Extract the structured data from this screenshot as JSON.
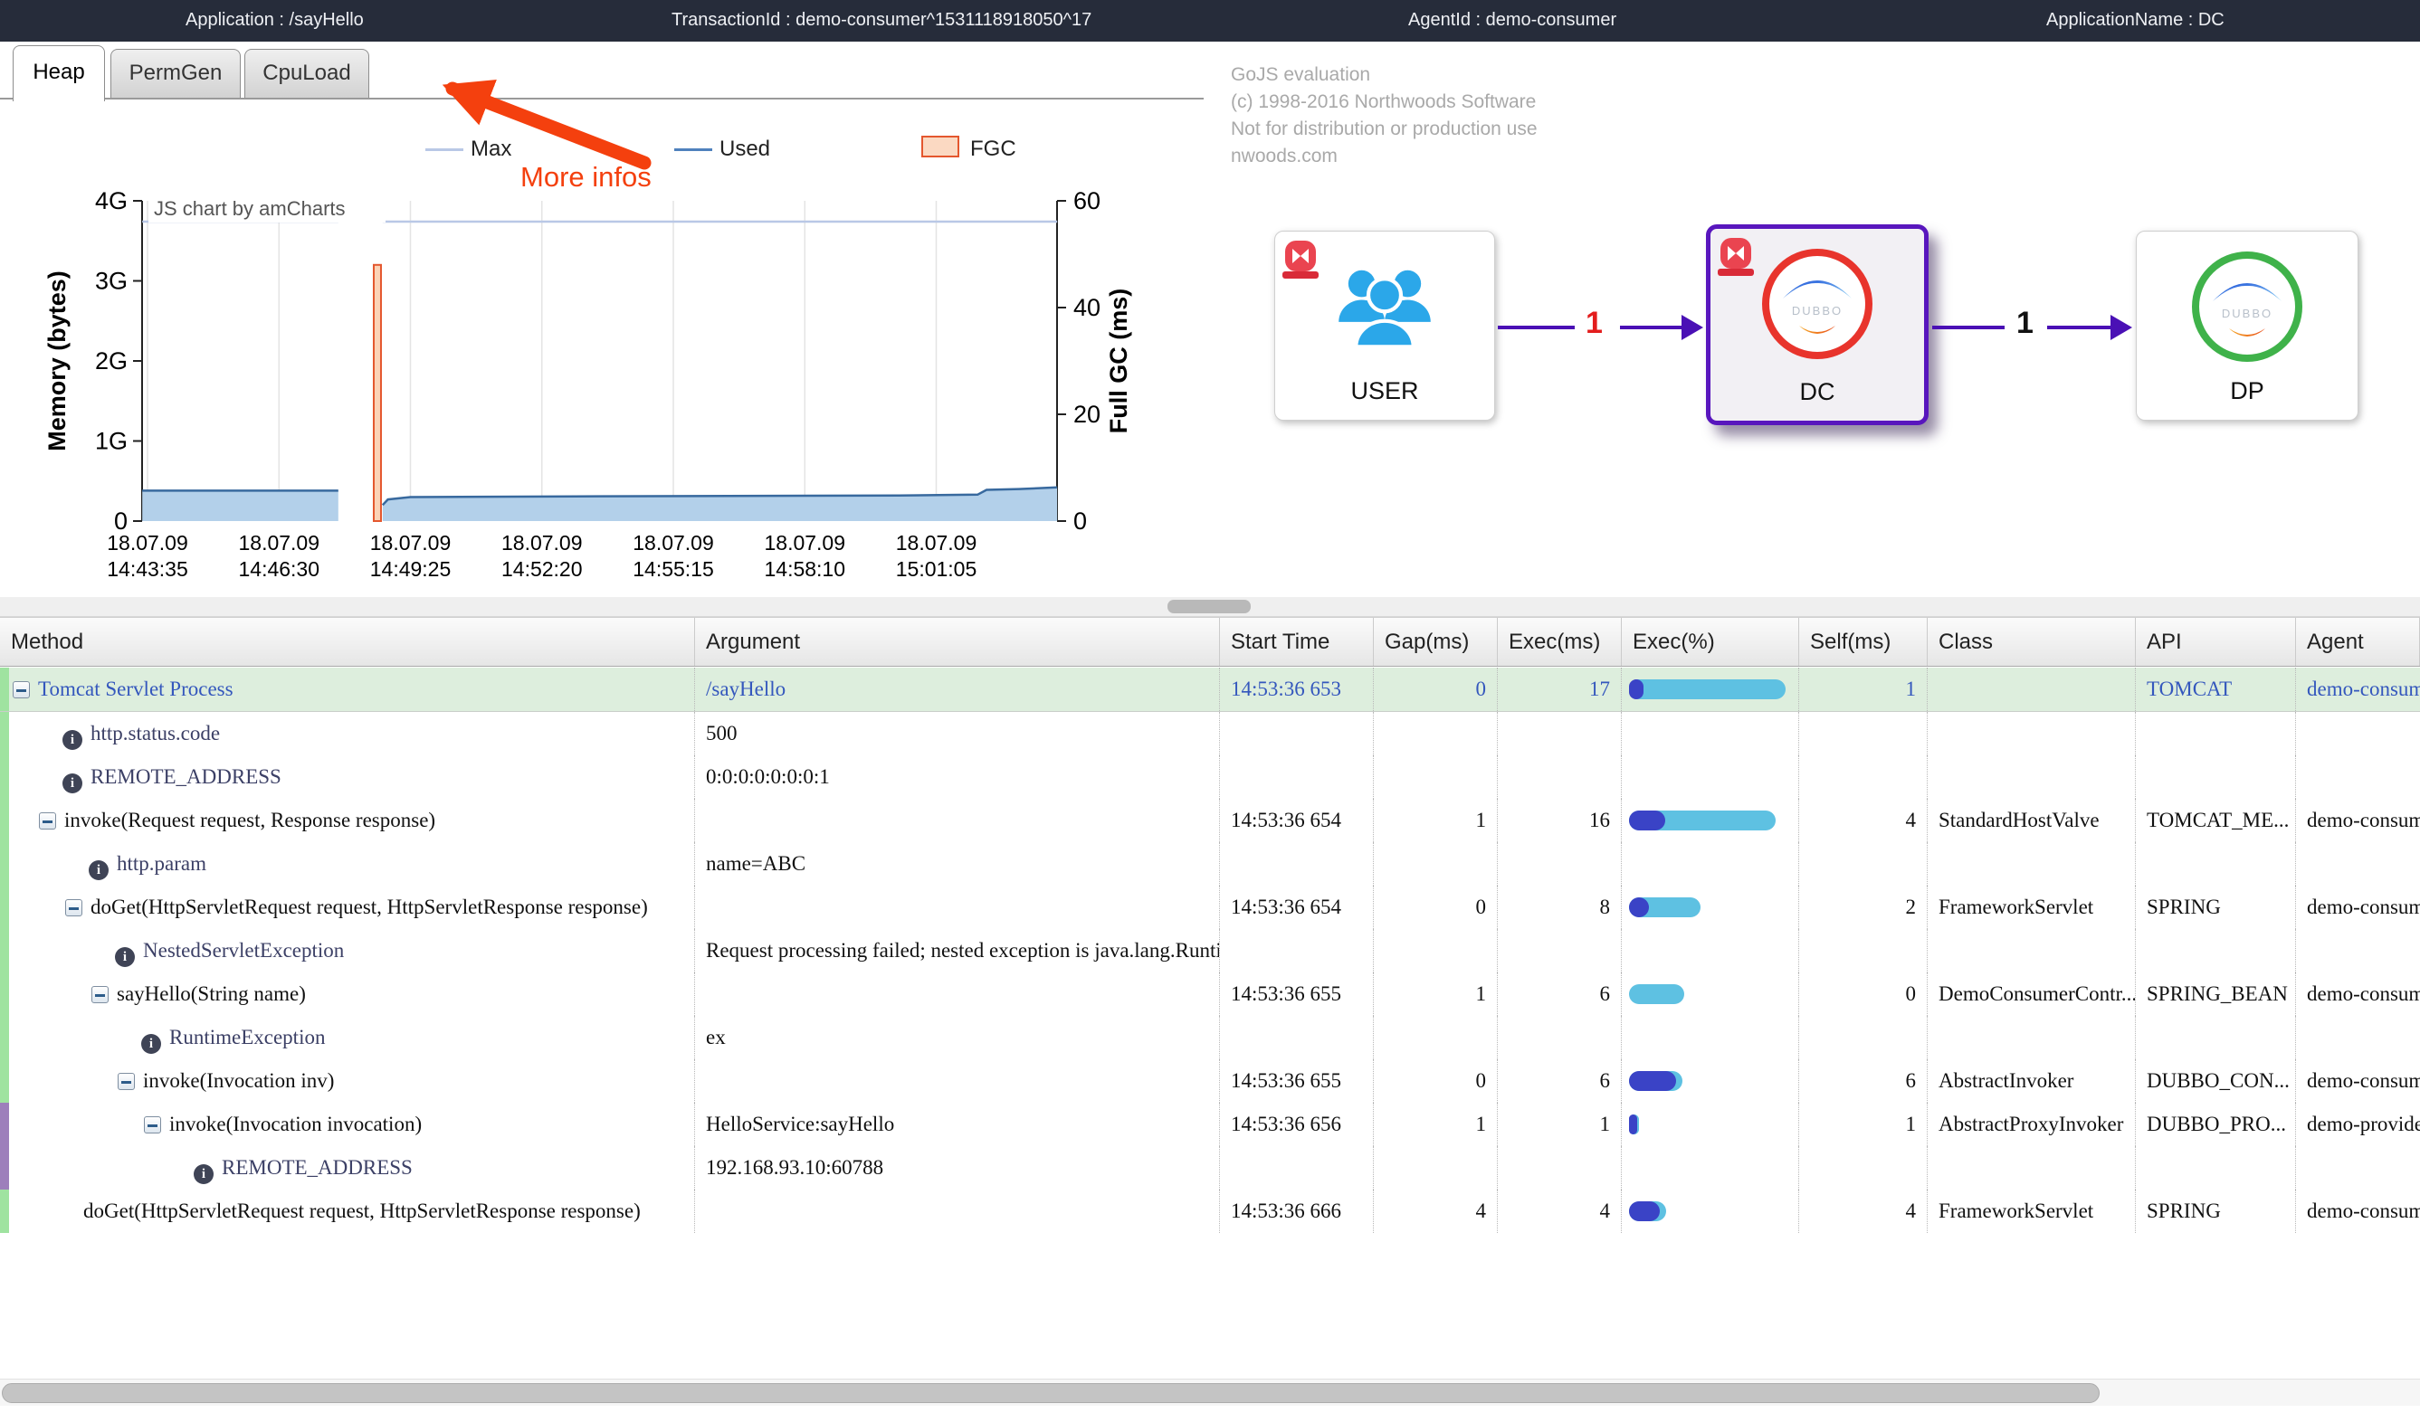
{
  "top_bar": {
    "items": [
      {
        "text": "Application : /sayHello"
      },
      {
        "text": "TransactionId : demo-consumer^1531118918050^17"
      },
      {
        "text": "AgentId : demo-consumer"
      },
      {
        "text": "ApplicationName : DC"
      }
    ]
  },
  "tabs": [
    {
      "label": "Heap",
      "active": true
    },
    {
      "label": "PermGen",
      "active": false
    },
    {
      "label": "CpuLoad",
      "active": false
    }
  ],
  "annotation": {
    "text": "More infos",
    "color": "#f4400e"
  },
  "chart_data": {
    "type": "area",
    "watermark": "JS chart by amCharts",
    "legend": [
      {
        "label": "Max",
        "type": "line",
        "color": "#b9c8e6"
      },
      {
        "label": "Used",
        "type": "line",
        "color": "#4f81bd"
      },
      {
        "label": "FGC",
        "type": "box",
        "stroke": "#e4572e",
        "fill": "#fbd9c2"
      }
    ],
    "x_axis": {
      "tick_interval_seconds": 175,
      "ticks": [
        {
          "date": "18.07.09",
          "time": "14:43:35"
        },
        {
          "date": "18.07.09",
          "time": "14:46:30"
        },
        {
          "date": "18.07.09",
          "time": "14:49:25"
        },
        {
          "date": "18.07.09",
          "time": "14:52:20"
        },
        {
          "date": "18.07.09",
          "time": "14:55:15"
        },
        {
          "date": "18.07.09",
          "time": "14:58:10"
        },
        {
          "date": "18.07.09",
          "time": "15:01:05"
        }
      ]
    },
    "y_left": {
      "label": "Memory (bytes)",
      "ticks": [
        "0",
        "1G",
        "2G",
        "3G",
        "4G"
      ],
      "max_g": 4
    },
    "y_right": {
      "label": "Full GC (ms)",
      "ticks": [
        "0",
        "20",
        "40",
        "60"
      ],
      "max_ms": 60
    },
    "series": {
      "max": {
        "name": "Max",
        "color": "#b9c8e6",
        "value_g": 3.74,
        "segments_s": [
          [
            -7,
            254
          ],
          [
            313,
            1211
          ]
        ]
      },
      "used": {
        "name": "Used",
        "line_color": "#38699e",
        "fill_color": "#b3d0ea",
        "segments": [
          [
            [
              -7,
              0.38
            ],
            [
              254,
              0.38
            ]
          ],
          [
            [
              313,
              0.2
            ],
            [
              320,
              0.27
            ],
            [
              350,
              0.3
            ],
            [
              600,
              0.31
            ],
            [
              1000,
              0.32
            ],
            [
              1105,
              0.33
            ],
            [
              1117,
              0.39
            ],
            [
              1160,
              0.4
            ],
            [
              1211,
              0.42
            ]
          ]
        ]
      },
      "fgc": {
        "name": "FGC",
        "stroke": "#e4572e",
        "fill": "#fbd3b6",
        "events": [
          {
            "t_s": 306,
            "ms": 48
          }
        ]
      }
    }
  },
  "diagram": {
    "watermark_lines": [
      "GoJS evaluation",
      "(c) 1998-2016 Northwoods Software",
      "Not for distribution or production use",
      "nwoods.com"
    ],
    "nodes": [
      {
        "id": "USER",
        "label": "USER",
        "icon": "users",
        "alarm": true,
        "selected": false,
        "ring_color": null
      },
      {
        "id": "DC",
        "label": "DC",
        "icon": "dubbo",
        "alarm": true,
        "selected": true,
        "ring_color": "#e8342c"
      },
      {
        "id": "DP",
        "label": "DP",
        "icon": "dubbo",
        "alarm": false,
        "selected": false,
        "ring_color": "#3fb24a"
      }
    ],
    "edges": [
      {
        "from": "USER",
        "to": "DC",
        "label": "1",
        "label_color": "#e31d1d"
      },
      {
        "from": "DC",
        "to": "DP",
        "label": "1",
        "label_color": "#111111"
      }
    ]
  },
  "table": {
    "columns": [
      {
        "label": "Method"
      },
      {
        "label": "Argument"
      },
      {
        "label": "Start Time"
      },
      {
        "label": "Gap(ms)"
      },
      {
        "label": "Exec(ms)"
      },
      {
        "label": "Exec(%)"
      },
      {
        "label": "Self(ms)"
      },
      {
        "label": "Class"
      },
      {
        "label": "API"
      },
      {
        "label": "Agent"
      }
    ],
    "rows": [
      {
        "method": "Tomcat Servlet Process",
        "icon": "expander",
        "depth": 0,
        "argument": "/sayHello",
        "start_time": "14:53:36 653",
        "gap": "0",
        "exec": "17",
        "exec_bar_total": 96,
        "exec_bar_self": 9,
        "self": "1",
        "class": "",
        "api": "TOMCAT",
        "agent": "demo-consumer",
        "highlight": true,
        "strip": "green"
      },
      {
        "method": "http.status.code",
        "icon": "info",
        "depth": 0,
        "argument": "500",
        "start_time": "",
        "gap": "",
        "exec": "",
        "exec_bar_total": 0,
        "exec_bar_self": 0,
        "self": "",
        "class": "",
        "api": "",
        "agent": "",
        "highlight": false,
        "strip": "green"
      },
      {
        "method": "REMOTE_ADDRESS",
        "icon": "info",
        "depth": 0,
        "argument": "0:0:0:0:0:0:0:1",
        "start_time": "",
        "gap": "",
        "exec": "",
        "exec_bar_total": 0,
        "exec_bar_self": 0,
        "self": "",
        "class": "",
        "api": "",
        "agent": "",
        "highlight": false,
        "strip": "green"
      },
      {
        "method": "invoke(Request request, Response response)",
        "icon": "expander",
        "depth": 1,
        "argument": "",
        "start_time": "14:53:36 654",
        "gap": "1",
        "exec": "16",
        "exec_bar_total": 90,
        "exec_bar_self": 22,
        "self": "4",
        "class": "StandardHostValve",
        "api": "TOMCAT_ME...",
        "agent": "demo-consumer",
        "highlight": false,
        "strip": "green"
      },
      {
        "method": "http.param",
        "icon": "info",
        "depth": 1,
        "argument": "name=ABC",
        "start_time": "",
        "gap": "",
        "exec": "",
        "exec_bar_total": 0,
        "exec_bar_self": 0,
        "self": "",
        "class": "",
        "api": "",
        "agent": "",
        "highlight": false,
        "strip": "green"
      },
      {
        "method": "doGet(HttpServletRequest request, HttpServletResponse response)",
        "icon": "expander",
        "depth": 2,
        "argument": "",
        "start_time": "14:53:36 654",
        "gap": "0",
        "exec": "8",
        "exec_bar_total": 44,
        "exec_bar_self": 12,
        "self": "2",
        "class": "FrameworkServlet",
        "api": "SPRING",
        "agent": "demo-consumer",
        "highlight": false,
        "strip": "green"
      },
      {
        "method": "NestedServletException",
        "icon": "info",
        "depth": 2,
        "argument": "Request processing failed; nested exception is java.lang.RuntimeE",
        "start_time": "",
        "gap": "",
        "exec": "",
        "exec_bar_total": 0,
        "exec_bar_self": 0,
        "self": "",
        "class": "",
        "api": "",
        "agent": "",
        "highlight": false,
        "strip": "green"
      },
      {
        "method": "sayHello(String name)",
        "icon": "expander",
        "depth": 3,
        "argument": "",
        "start_time": "14:53:36 655",
        "gap": "1",
        "exec": "6",
        "exec_bar_total": 34,
        "exec_bar_self": 0,
        "self": "0",
        "class": "DemoConsumerContr...",
        "api": "SPRING_BEAN",
        "agent": "demo-consumer",
        "highlight": false,
        "strip": "green"
      },
      {
        "method": "RuntimeException",
        "icon": "info",
        "depth": 3,
        "argument": "ex",
        "start_time": "",
        "gap": "",
        "exec": "",
        "exec_bar_total": 0,
        "exec_bar_self": 0,
        "self": "",
        "class": "",
        "api": "",
        "agent": "",
        "highlight": false,
        "strip": "green"
      },
      {
        "method": "invoke(Invocation inv)",
        "icon": "expander",
        "depth": 4,
        "argument": "",
        "start_time": "14:53:36 655",
        "gap": "0",
        "exec": "6",
        "exec_bar_total": 33,
        "exec_bar_self": 29,
        "self": "6",
        "class": "AbstractInvoker",
        "api": "DUBBO_CON...",
        "agent": "demo-consumer",
        "highlight": false,
        "strip": "green"
      },
      {
        "method": "invoke(Invocation invocation)",
        "icon": "expander",
        "depth": 5,
        "argument": "HelloService:sayHello",
        "start_time": "14:53:36 656",
        "gap": "1",
        "exec": "1",
        "exec_bar_total": 6,
        "exec_bar_self": 5,
        "self": "1",
        "class": "AbstractProxyInvoker",
        "api": "DUBBO_PRO...",
        "agent": "demo-provider",
        "highlight": false,
        "strip": "purple"
      },
      {
        "method": "REMOTE_ADDRESS",
        "icon": "info",
        "depth": 5,
        "argument": "192.168.93.10:60788",
        "start_time": "",
        "gap": "",
        "exec": "",
        "exec_bar_total": 0,
        "exec_bar_self": 0,
        "self": "",
        "class": "",
        "api": "",
        "agent": "",
        "highlight": false,
        "strip": "purple"
      },
      {
        "method": "doGet(HttpServletRequest request, HttpServletResponse response)",
        "icon": "none",
        "depth": 2,
        "argument": "",
        "start_time": "14:53:36 666",
        "gap": "4",
        "exec": "4",
        "exec_bar_total": 23,
        "exec_bar_self": 19,
        "self": "4",
        "class": "FrameworkServlet",
        "api": "SPRING",
        "agent": "demo-consumer",
        "highlight": false,
        "strip": "green"
      }
    ]
  },
  "colors": {
    "topbar_bg": "#262c3a",
    "accent_purple": "#4a10b5",
    "link_blue": "#3457bd",
    "row_highlight": "#ddeedd",
    "strip_green": "#9fe3a0",
    "strip_purple": "#9d7fbb",
    "bar_light": "#5ec1e2",
    "bar_dark": "#3a43c6",
    "alarm_red": "#ea4450"
  }
}
